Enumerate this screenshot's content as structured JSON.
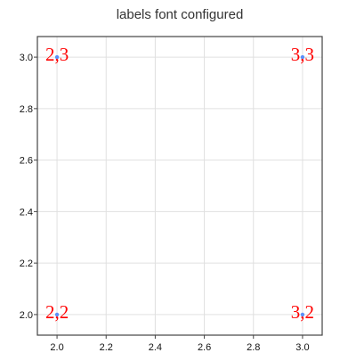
{
  "chart_data": {
    "type": "scatter",
    "title": "labels font configured",
    "xlabel": "",
    "ylabel": "",
    "xlim": [
      1.92,
      3.08
    ],
    "ylim": [
      1.92,
      3.08
    ],
    "x_ticks": [
      2.0,
      2.2,
      2.4,
      2.6,
      2.8,
      3.0
    ],
    "y_ticks": [
      2.0,
      2.2,
      2.4,
      2.6,
      2.8,
      3.0
    ],
    "grid": true,
    "points": [
      {
        "x": 2.0,
        "y": 2.0,
        "label": "2,2"
      },
      {
        "x": 2.0,
        "y": 3.0,
        "label": "2,3"
      },
      {
        "x": 3.0,
        "y": 2.0,
        "label": "3,2"
      },
      {
        "x": 3.0,
        "y": 3.0,
        "label": "3,3"
      }
    ],
    "marker_color": "#5b8ff9",
    "label_color": "#ff0000",
    "grid_color": "#e0e0e0",
    "axis_color": "#444444"
  }
}
